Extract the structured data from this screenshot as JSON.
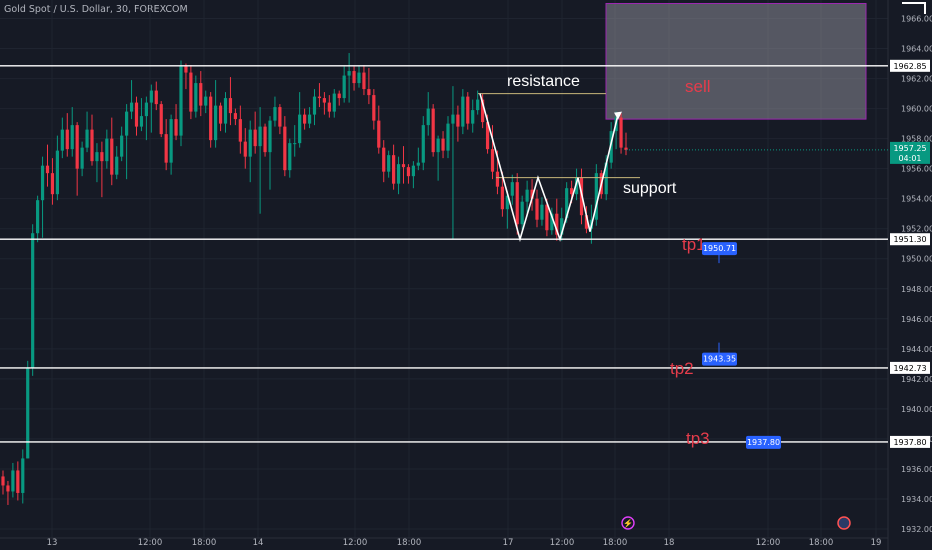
{
  "header": {
    "title": "Gold Spot / U.S. Dollar, 30, FOREXCOM"
  },
  "chart_data": {
    "type": "candlestick",
    "symbol": "Gold Spot / U.S. Dollar",
    "timeframe": "30",
    "source": "FOREXCOM",
    "ylim": [
      1931.6,
      1967.1
    ],
    "y_ticks": [
      1932,
      1934,
      1936,
      1938,
      1940,
      1942,
      1944,
      1946,
      1948,
      1950,
      1952,
      1954,
      1956,
      1958,
      1960,
      1962,
      1964,
      1966
    ],
    "x_ticks": [
      "13",
      "12:00",
      "18:00",
      "14",
      "12:00",
      "18:00",
      "17",
      "12:00",
      "18:00",
      "18",
      "12:00",
      "18:00",
      "19"
    ],
    "current_price": "1957.25",
    "countdown": "04:01",
    "horizontal_levels": [
      {
        "label": "1962.85",
        "value": 1962.85
      },
      {
        "label": "1951.30",
        "value": 1951.3
      },
      {
        "label": "1942.73",
        "value": 1942.73
      },
      {
        "label": "1937.80",
        "value": 1937.8
      }
    ],
    "annotations": {
      "resistance": "resistance",
      "support": "support",
      "sell": "sell",
      "tp1": "tp1",
      "tp2": "tp2",
      "tp3": "tp3"
    },
    "sell_zone": {
      "from": 1959.3,
      "to": 1967.0
    },
    "resistance_line_value": 1961.0,
    "support_line_value": 1955.4,
    "targets": [
      {
        "label": "1950.71",
        "value": 1950.71
      },
      {
        "label": "1943.35",
        "value": 1943.35
      },
      {
        "label": "1937.80",
        "value": 1937.8
      }
    ],
    "candles": [
      [
        1935.5,
        1935.9,
        1934.3,
        1934.9
      ],
      [
        1934.9,
        1935.2,
        1933.6,
        1934.5
      ],
      [
        1934.5,
        1936.4,
        1934.1,
        1935.9
      ],
      [
        1935.9,
        1936.5,
        1933.9,
        1934.4
      ],
      [
        1934.4,
        1937.3,
        1933.7,
        1936.7
      ],
      [
        1936.7,
        1943.2,
        1936.7,
        1942.7
      ],
      [
        1942.7,
        1952.3,
        1942.2,
        1951.7
      ],
      [
        1951.7,
        1954.2,
        1951.1,
        1953.9
      ],
      [
        1953.9,
        1956.8,
        1951.4,
        1956.2
      ],
      [
        1956.2,
        1957.6,
        1954.8,
        1955.7
      ],
      [
        1955.7,
        1956.7,
        1953.6,
        1954.3
      ],
      [
        1954.3,
        1958.2,
        1953.9,
        1957.2
      ],
      [
        1957.2,
        1959.4,
        1956.7,
        1958.6
      ],
      [
        1958.6,
        1959.7,
        1956.8,
        1957.3
      ],
      [
        1957.3,
        1960.1,
        1956.8,
        1958.9
      ],
      [
        1958.9,
        1959.1,
        1954.2,
        1956.0
      ],
      [
        1956.0,
        1957.8,
        1955.5,
        1957.4
      ],
      [
        1957.4,
        1959.8,
        1957.1,
        1958.6
      ],
      [
        1958.6,
        1959.6,
        1956.2,
        1956.5
      ],
      [
        1956.5,
        1957.7,
        1955.1,
        1957.1
      ],
      [
        1957.1,
        1957.8,
        1954.1,
        1956.5
      ],
      [
        1956.5,
        1958.6,
        1956.0,
        1958.0
      ],
      [
        1958.0,
        1959.4,
        1954.9,
        1955.6
      ],
      [
        1955.6,
        1957.5,
        1955.3,
        1956.8
      ],
      [
        1956.8,
        1958.8,
        1956.5,
        1958.2
      ],
      [
        1958.2,
        1960.3,
        1955.3,
        1959.8
      ],
      [
        1959.8,
        1961.9,
        1959.3,
        1960.4
      ],
      [
        1960.4,
        1960.8,
        1958.2,
        1958.8
      ],
      [
        1958.8,
        1960.7,
        1958.5,
        1959.5
      ],
      [
        1959.5,
        1960.8,
        1957.9,
        1960.4
      ],
      [
        1960.4,
        1961.6,
        1958.4,
        1961.2
      ],
      [
        1961.2,
        1961.8,
        1959.9,
        1960.3
      ],
      [
        1960.3,
        1960.5,
        1958.1,
        1958.3
      ],
      [
        1958.3,
        1959.3,
        1955.9,
        1956.4
      ],
      [
        1956.4,
        1959.6,
        1955.6,
        1959.3
      ],
      [
        1959.3,
        1960.3,
        1957.9,
        1958.2
      ],
      [
        1958.2,
        1963.2,
        1957.5,
        1962.8
      ],
      [
        1962.8,
        1963.0,
        1961.3,
        1962.4
      ],
      [
        1962.4,
        1962.9,
        1959.3,
        1959.8
      ],
      [
        1959.8,
        1962.2,
        1959.4,
        1961.7
      ],
      [
        1961.7,
        1962.5,
        1959.5,
        1960.2
      ],
      [
        1960.2,
        1961.2,
        1959.7,
        1960.8
      ],
      [
        1960.8,
        1961.1,
        1957.4,
        1957.9
      ],
      [
        1957.9,
        1961.9,
        1957.4,
        1960.2
      ],
      [
        1960.2,
        1960.4,
        1958.5,
        1959.0
      ],
      [
        1959.0,
        1961.1,
        1958.4,
        1960.7
      ],
      [
        1960.7,
        1962.1,
        1958.9,
        1959.7
      ],
      [
        1959.7,
        1960.0,
        1958.9,
        1959.3
      ],
      [
        1959.3,
        1960.2,
        1957.0,
        1957.8
      ],
      [
        1957.8,
        1958.7,
        1956.0,
        1956.8
      ],
      [
        1956.8,
        1959.2,
        1955.1,
        1958.6
      ],
      [
        1958.6,
        1959.8,
        1957.0,
        1957.5
      ],
      [
        1957.5,
        1960.1,
        1953.0,
        1958.8
      ],
      [
        1958.8,
        1959.0,
        1956.8,
        1957.1
      ],
      [
        1957.1,
        1959.5,
        1954.6,
        1959.2
      ],
      [
        1959.2,
        1960.8,
        1958.8,
        1960.1
      ],
      [
        1960.1,
        1960.3,
        1958.3,
        1958.8
      ],
      [
        1958.8,
        1959.5,
        1955.5,
        1955.9
      ],
      [
        1955.9,
        1958.0,
        1955.4,
        1957.7
      ],
      [
        1957.7,
        1958.9,
        1956.8,
        1957.7
      ],
      [
        1957.7,
        1961.1,
        1957.4,
        1959.6
      ],
      [
        1959.6,
        1960.0,
        1958.6,
        1959.0
      ],
      [
        1959.0,
        1960.1,
        1958.7,
        1959.6
      ],
      [
        1959.6,
        1961.3,
        1958.9,
        1960.8
      ],
      [
        1960.8,
        1961.7,
        1960.1,
        1960.7
      ],
      [
        1960.7,
        1961.1,
        1959.6,
        1960.4
      ],
      [
        1960.4,
        1960.9,
        1959.4,
        1959.8
      ],
      [
        1959.8,
        1961.3,
        1959.4,
        1961.0
      ],
      [
        1961.0,
        1961.2,
        1960.2,
        1960.7
      ],
      [
        1960.7,
        1962.8,
        1960.4,
        1962.2
      ],
      [
        1962.2,
        1963.7,
        1960.4,
        1962.5
      ],
      [
        1962.5,
        1962.8,
        1961.2,
        1961.7
      ],
      [
        1961.7,
        1962.8,
        1961.4,
        1962.4
      ],
      [
        1962.4,
        1962.9,
        1960.9,
        1961.3
      ],
      [
        1961.3,
        1962.7,
        1960.3,
        1960.9
      ],
      [
        1960.9,
        1961.3,
        1958.6,
        1959.2
      ],
      [
        1959.2,
        1960.2,
        1957.0,
        1957.4
      ],
      [
        1957.4,
        1957.9,
        1955.1,
        1955.8
      ],
      [
        1955.8,
        1957.2,
        1955.4,
        1956.9
      ],
      [
        1956.9,
        1957.6,
        1954.6,
        1955.0
      ],
      [
        1955.0,
        1956.8,
        1954.3,
        1956.3
      ],
      [
        1956.3,
        1957.5,
        1955.0,
        1956.1
      ],
      [
        1956.1,
        1956.3,
        1955.0,
        1955.5
      ],
      [
        1955.5,
        1956.5,
        1954.7,
        1956.2
      ],
      [
        1956.2,
        1957.4,
        1955.9,
        1956.4
      ],
      [
        1956.4,
        1959.5,
        1955.9,
        1958.9
      ],
      [
        1958.9,
        1961.1,
        1958.2,
        1960.0
      ],
      [
        1960.0,
        1960.3,
        1956.8,
        1957.1
      ],
      [
        1957.1,
        1958.2,
        1955.2,
        1958.0
      ],
      [
        1958.0,
        1958.5,
        1956.7,
        1957.2
      ],
      [
        1957.2,
        1959.5,
        1956.7,
        1959.0
      ],
      [
        1959.0,
        1961.5,
        1951.3,
        1959.6
      ],
      [
        1959.6,
        1960.2,
        1957.8,
        1958.8
      ],
      [
        1958.8,
        1961.3,
        1958.3,
        1960.8
      ],
      [
        1960.8,
        1961.1,
        1958.6,
        1959.0
      ],
      [
        1959.0,
        1960.6,
        1958.4,
        1959.9
      ],
      [
        1959.9,
        1961.2,
        1959.6,
        1960.6
      ],
      [
        1960.6,
        1961.0,
        1958.7,
        1959.1
      ],
      [
        1959.1,
        1959.6,
        1957.0,
        1957.3
      ],
      [
        1957.3,
        1958.9,
        1955.3,
        1955.8
      ],
      [
        1955.8,
        1957.2,
        1954.3,
        1954.8
      ],
      [
        1954.8,
        1955.8,
        1952.8,
        1953.3
      ],
      [
        1953.3,
        1954.5,
        1952.0,
        1954.2
      ],
      [
        1954.2,
        1955.6,
        1953.6,
        1955.1
      ],
      [
        1955.1,
        1955.7,
        1951.6,
        1952.3
      ],
      [
        1952.3,
        1954.2,
        1951.9,
        1953.8
      ],
      [
        1953.8,
        1955.2,
        1952.8,
        1954.6
      ],
      [
        1954.6,
        1955.3,
        1953.2,
        1954.0
      ],
      [
        1954.0,
        1954.6,
        1952.1,
        1952.6
      ],
      [
        1952.6,
        1954.1,
        1952.2,
        1953.6
      ],
      [
        1953.6,
        1954.0,
        1951.5,
        1951.9
      ],
      [
        1951.9,
        1953.4,
        1951.6,
        1953.0
      ],
      [
        1953.0,
        1954.0,
        1951.2,
        1951.6
      ],
      [
        1951.6,
        1953.4,
        1951.2,
        1952.7
      ],
      [
        1952.7,
        1955.1,
        1952.4,
        1954.7
      ],
      [
        1954.7,
        1955.2,
        1953.7,
        1954.3
      ],
      [
        1954.3,
        1956.0,
        1953.9,
        1955.4
      ],
      [
        1955.4,
        1956.0,
        1952.3,
        1952.9
      ],
      [
        1952.9,
        1953.5,
        1951.7,
        1952.0
      ],
      [
        1952.0,
        1953.6,
        1951.0,
        1952.6
      ],
      [
        1952.6,
        1956.3,
        1952.2,
        1955.7
      ],
      [
        1955.7,
        1955.9,
        1954.0,
        1954.3
      ],
      [
        1954.3,
        1956.9,
        1953.9,
        1956.4
      ],
      [
        1956.4,
        1959.1,
        1956.0,
        1958.5
      ],
      [
        1958.5,
        1959.8,
        1957.3,
        1959.4
      ],
      [
        1959.4,
        1959.7,
        1957.0,
        1957.4
      ],
      [
        1957.4,
        1958.4,
        1956.9,
        1957.25
      ]
    ]
  }
}
